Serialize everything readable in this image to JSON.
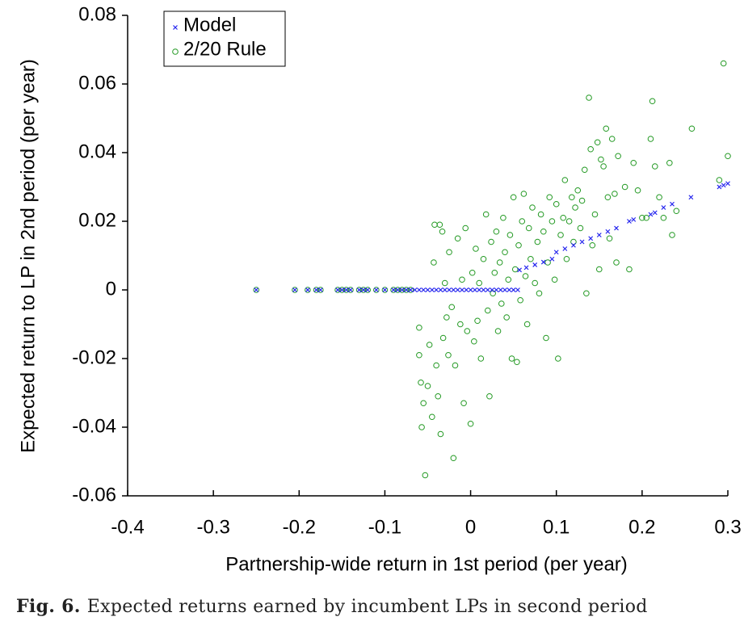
{
  "chart_data": {
    "type": "scatter",
    "xlabel": "Partnership-wide return in 1st period (per year)",
    "ylabel": "Expected return to LP in 2nd period (per year)",
    "xlim": [
      -0.4,
      0.3
    ],
    "ylim": [
      -0.06,
      0.08
    ],
    "xticks": [
      -0.4,
      -0.3,
      -0.2,
      -0.1,
      0,
      0.1,
      0.2,
      0.3
    ],
    "yticks": [
      -0.06,
      -0.04,
      -0.02,
      0,
      0.02,
      0.04,
      0.06,
      0.08
    ],
    "legend": "upper left",
    "series": [
      {
        "name": "Model",
        "color": "#2222ee",
        "marker": "x",
        "x": [
          -0.25,
          -0.205,
          -0.19,
          -0.18,
          -0.175,
          -0.155,
          -0.15,
          -0.145,
          -0.14,
          -0.13,
          -0.125,
          -0.12,
          -0.11,
          -0.1,
          -0.09,
          -0.085,
          -0.08,
          -0.075,
          -0.07,
          -0.065,
          -0.06,
          -0.055,
          -0.05,
          -0.045,
          -0.04,
          -0.035,
          -0.03,
          -0.025,
          -0.02,
          -0.015,
          -0.01,
          -0.005,
          0,
          0.005,
          0.01,
          0.015,
          0.02,
          0.025,
          0.03,
          0.035,
          0.04,
          0.045,
          0.05,
          0.055,
          0.057,
          0.065,
          0.075,
          0.085,
          0.095,
          0.1,
          0.11,
          0.12,
          0.13,
          0.14,
          0.15,
          0.16,
          0.17,
          0.185,
          0.19,
          0.21,
          0.215,
          0.225,
          0.235,
          0.257,
          0.29,
          0.295,
          0.3
        ],
        "values": [
          0,
          0,
          0,
          0,
          0,
          0,
          0,
          0,
          0,
          0,
          0,
          0,
          0,
          0,
          0,
          0,
          0,
          0,
          0,
          0,
          0,
          0,
          0,
          0,
          0,
          0,
          0,
          0,
          0,
          0,
          0,
          0,
          0,
          0,
          0,
          0,
          0,
          0,
          0,
          0,
          0,
          0,
          0,
          0,
          0.0058,
          0.0065,
          0.0073,
          0.0081,
          0.009,
          0.011,
          0.012,
          0.013,
          0.014,
          0.015,
          0.016,
          0.017,
          0.018,
          0.02,
          0.0205,
          0.022,
          0.0225,
          0.024,
          0.025,
          0.027,
          0.03,
          0.0305,
          0.031
        ]
      },
      {
        "name": "2/20 Rule",
        "color": "#229922",
        "marker": "o",
        "x": [
          -0.25,
          -0.205,
          -0.19,
          -0.18,
          -0.175,
          -0.155,
          -0.15,
          -0.145,
          -0.14,
          -0.13,
          -0.125,
          -0.12,
          -0.11,
          -0.1,
          -0.09,
          -0.085,
          -0.08,
          -0.075,
          -0.07,
          -0.06,
          -0.06,
          -0.058,
          -0.057,
          -0.055,
          -0.053,
          -0.05,
          -0.048,
          -0.045,
          -0.043,
          -0.042,
          -0.04,
          -0.038,
          -0.036,
          -0.035,
          -0.033,
          -0.032,
          -0.03,
          -0.028,
          -0.026,
          -0.025,
          -0.022,
          -0.02,
          -0.018,
          -0.015,
          -0.012,
          -0.01,
          -0.008,
          -0.006,
          -0.004,
          0,
          0.002,
          0.004,
          0.006,
          0.008,
          0.01,
          0.012,
          0.015,
          0.018,
          0.02,
          0.022,
          0.024,
          0.026,
          0.028,
          0.03,
          0.032,
          0.034,
          0.036,
          0.038,
          0.04,
          0.042,
          0.044,
          0.046,
          0.048,
          0.05,
          0.052,
          0.054,
          0.056,
          0.058,
          0.06,
          0.062,
          0.064,
          0.066,
          0.068,
          0.07,
          0.072,
          0.075,
          0.078,
          0.08,
          0.082,
          0.085,
          0.088,
          0.09,
          0.092,
          0.095,
          0.098,
          0.1,
          0.102,
          0.105,
          0.108,
          0.11,
          0.112,
          0.115,
          0.118,
          0.12,
          0.122,
          0.125,
          0.128,
          0.13,
          0.133,
          0.135,
          0.138,
          0.14,
          0.142,
          0.145,
          0.148,
          0.15,
          0.152,
          0.155,
          0.158,
          0.16,
          0.162,
          0.165,
          0.168,
          0.17,
          0.172,
          0.18,
          0.185,
          0.19,
          0.195,
          0.2,
          0.205,
          0.21,
          0.212,
          0.215,
          0.22,
          0.225,
          0.232,
          0.235,
          0.24,
          0.258,
          0.29,
          0.295,
          0.3
        ],
        "values": [
          0,
          0,
          0,
          0,
          0,
          0,
          0,
          0,
          0,
          0,
          0,
          0,
          0,
          0,
          0,
          0,
          0,
          0,
          0,
          -0.011,
          -0.019,
          -0.027,
          -0.04,
          -0.033,
          -0.054,
          -0.028,
          -0.016,
          -0.037,
          0.008,
          0.019,
          -0.022,
          -0.031,
          0.019,
          -0.042,
          0.017,
          -0.014,
          0.002,
          -0.008,
          -0.019,
          0.011,
          -0.005,
          -0.049,
          -0.022,
          0.015,
          -0.01,
          0.003,
          -0.033,
          0.018,
          -0.012,
          -0.039,
          0.005,
          -0.015,
          0.012,
          -0.009,
          0.002,
          -0.02,
          0.009,
          0.022,
          -0.006,
          -0.031,
          0.014,
          -0.001,
          0.005,
          0.017,
          -0.012,
          0.008,
          -0.004,
          0.021,
          0.011,
          -0.008,
          0.003,
          0.016,
          -0.02,
          0.027,
          0.006,
          -0.021,
          0.013,
          -0.003,
          0.02,
          0.028,
          0.004,
          -0.01,
          0.018,
          0.009,
          0.024,
          0.002,
          0.014,
          -0.001,
          0.022,
          0.017,
          -0.014,
          0.008,
          0.027,
          0.02,
          0.003,
          0.025,
          -0.02,
          0.016,
          0.021,
          0.032,
          0.009,
          0.02,
          0.027,
          0.014,
          0.024,
          0.029,
          0.018,
          0.026,
          0.035,
          -0.001,
          0.056,
          0.041,
          0.013,
          0.022,
          0.043,
          0.006,
          0.038,
          0.036,
          0.047,
          0.027,
          0.015,
          0.044,
          0.028,
          0.008,
          0.039,
          0.03,
          0.006,
          0.037,
          0.029,
          0.021,
          0.021,
          0.044,
          0.055,
          0.036,
          0.027,
          0.021,
          0.037,
          0.016,
          0.023,
          0.047,
          0.032,
          0.066,
          0.039
        ]
      }
    ]
  },
  "caption": {
    "label": "Fig. 6.",
    "text": "Expected returns earned by incumbent LPs in second period"
  }
}
